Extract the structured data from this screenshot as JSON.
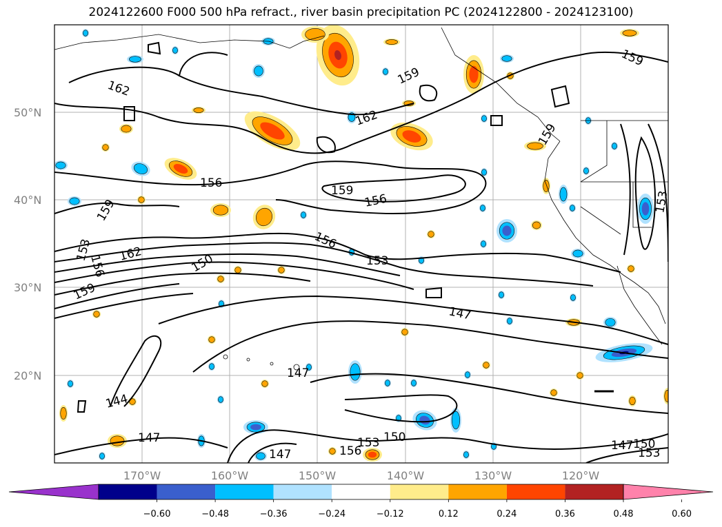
{
  "title": "2024122600 F000 500 hPa refract., river basin precipitation PC (2024122800 - 2024123100)",
  "map": {
    "lat_labels": [
      "50°N",
      "40°N",
      "30°N",
      "20°N"
    ],
    "lon_labels": [
      "170°W",
      "160°W",
      "150°W",
      "140°W",
      "130°W",
      "120°W"
    ],
    "contour_levels": [
      144,
      147,
      150,
      153,
      156,
      159,
      162
    ],
    "contour_labels": [
      {
        "id": "c1",
        "text": "162"
      },
      {
        "id": "c2",
        "text": "159"
      },
      {
        "id": "c3",
        "text": "159"
      },
      {
        "id": "c4",
        "text": "162"
      },
      {
        "id": "c5",
        "text": "156"
      },
      {
        "id": "c6",
        "text": "159"
      },
      {
        "id": "c7",
        "text": "156"
      },
      {
        "id": "c8",
        "text": "159"
      },
      {
        "id": "c9",
        "text": "156"
      },
      {
        "id": "c10",
        "text": "153"
      },
      {
        "id": "c11",
        "text": "162"
      },
      {
        "id": "c12",
        "text": "156"
      },
      {
        "id": "c13",
        "text": "153"
      },
      {
        "id": "c14",
        "text": "150"
      },
      {
        "id": "c15",
        "text": "159"
      },
      {
        "id": "c16",
        "text": "147"
      },
      {
        "id": "c17",
        "text": "147"
      },
      {
        "id": "c18",
        "text": "144"
      },
      {
        "id": "c19",
        "text": "147"
      },
      {
        "id": "c20",
        "text": "153"
      },
      {
        "id": "c21",
        "text": "150"
      },
      {
        "id": "c22",
        "text": "156"
      },
      {
        "id": "c23",
        "text": "147"
      },
      {
        "id": "c24",
        "text": "147"
      },
      {
        "id": "c25",
        "text": "150"
      },
      {
        "id": "c26",
        "text": "153"
      },
      {
        "id": "c27",
        "text": "153"
      },
      {
        "id": "c28",
        "text": "159"
      }
    ]
  },
  "colorbar": {
    "ticks": [
      "−0.60",
      "−0.48",
      "−0.36",
      "−0.24",
      "−0.12",
      "0.12",
      "0.24",
      "0.36",
      "0.48",
      "0.60"
    ],
    "colors": [
      "#9932cc",
      "#00008b",
      "#3a5fcd",
      "#00bfff",
      "#b0e2ff",
      "#ffffff",
      "#ffec8b",
      "#ffa500",
      "#ff4500",
      "#b22222",
      "#ff82ab"
    ]
  },
  "precip_colors": {
    "pos1": "#ffec8b",
    "pos2": "#ffa500",
    "pos3": "#ff4500",
    "pos4": "#b22222",
    "neg1": "#b0e2ff",
    "neg2": "#00bfff",
    "neg3": "#3a5fcd",
    "neg4": "#00008b"
  }
}
